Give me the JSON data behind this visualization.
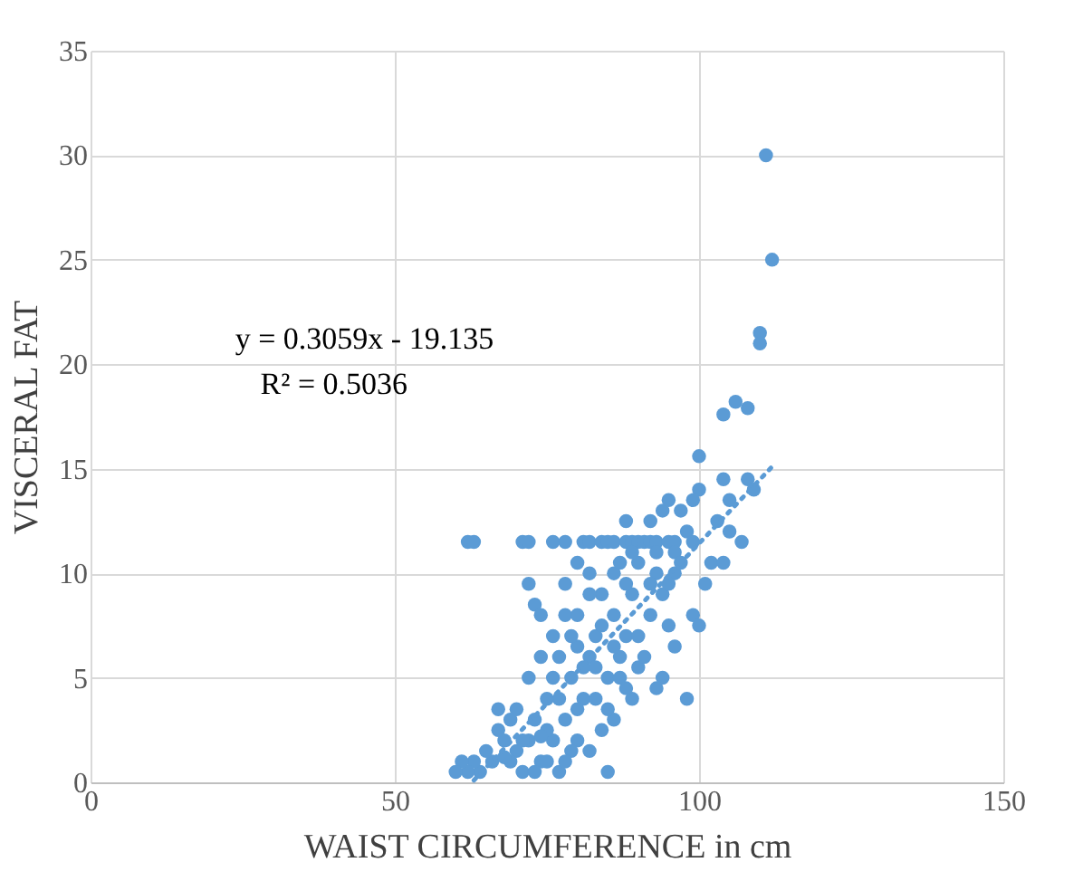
{
  "chart_data": {
    "type": "scatter",
    "xlabel": "WAIST CIRCUMFERENCE in cm",
    "ylabel": "VISCERAL FAT",
    "xlim": [
      0,
      150
    ],
    "ylim": [
      0,
      35
    ],
    "xticks": [
      0,
      50,
      100,
      150
    ],
    "yticks": [
      0,
      5,
      10,
      15,
      20,
      25,
      30,
      35
    ],
    "grid": true,
    "marker": "circle",
    "annotations": [
      "y = 0.3059x - 19.135",
      "R² = 0.5036"
    ],
    "series": [
      {
        "color": "#5b9bd5",
        "x": [
          111,
          112,
          110,
          110,
          106,
          108,
          104,
          100,
          62,
          63,
          71,
          72,
          76,
          78,
          81,
          82,
          84,
          85,
          86,
          88,
          89,
          90,
          91,
          92,
          93,
          95,
          96,
          107,
          100,
          104,
          105,
          108,
          109,
          97,
          99,
          94,
          92,
          95,
          88,
          102,
          104,
          96,
          98,
          93,
          90,
          86,
          80,
          82,
          78,
          72,
          73,
          74,
          101,
          99,
          100,
          98,
          96,
          95,
          94,
          93,
          89,
          88,
          87,
          86,
          85,
          84,
          83,
          82,
          81,
          80,
          79,
          78,
          77,
          76,
          75,
          74,
          73,
          72,
          71,
          70,
          69,
          68,
          67,
          66,
          65,
          64,
          63,
          62,
          61,
          60,
          70,
          72,
          74,
          76,
          78,
          80,
          82,
          84,
          86,
          88,
          90,
          92,
          94,
          96,
          93,
          89,
          86,
          84,
          83,
          80,
          79,
          77,
          75,
          73,
          71,
          69,
          67,
          82,
          85,
          81,
          79,
          83,
          87,
          90,
          91,
          88,
          85,
          77,
          75,
          78,
          74,
          68,
          76,
          80,
          89,
          87,
          92,
          95,
          97,
          99,
          105,
          103
        ],
        "values": [
          30,
          25,
          21.5,
          21,
          18.2,
          17.9,
          17.6,
          15.6,
          11.5,
          11.5,
          11.5,
          11.5,
          11.5,
          11.5,
          11.5,
          11.5,
          11.5,
          11.5,
          11.5,
          11.5,
          11.5,
          11.5,
          11.5,
          11.5,
          11.5,
          11.5,
          11.5,
          11.5,
          14,
          14.5,
          13.5,
          14.5,
          14,
          13,
          13.5,
          13,
          12.5,
          13.5,
          12.5,
          10.5,
          10.5,
          11,
          12,
          11,
          10.5,
          10,
          10.5,
          10,
          9.5,
          9.5,
          8.5,
          8,
          9.5,
          8,
          7.5,
          4,
          6.5,
          7.5,
          9,
          10,
          9,
          7,
          6,
          8,
          5,
          9,
          7,
          6,
          4,
          8,
          5,
          3,
          6,
          2,
          4,
          1,
          3,
          2,
          0.5,
          1.5,
          3,
          2,
          3.5,
          1,
          1.5,
          0.5,
          1,
          0.5,
          1,
          0.5,
          3.5,
          5,
          6,
          7,
          8,
          6.5,
          9,
          7.5,
          6.5,
          9.5,
          7,
          8,
          5,
          10,
          4.5,
          4,
          3,
          2.5,
          4,
          2,
          1.5,
          0.5,
          1,
          0.5,
          2,
          1,
          2.5,
          1.5,
          0.5,
          5.5,
          7,
          5.5,
          5,
          5.5,
          6,
          4.5,
          3.5,
          4,
          2.5,
          1,
          2.2,
          1.2,
          5,
          3.5,
          11,
          10.5,
          9.5,
          9.5,
          10.5,
          11.5,
          12,
          12.5
        ]
      },
      {
        "type": "line",
        "marker": "none",
        "color": "#5b9bd5",
        "line_style": "dotted",
        "x": [
          63,
          112
        ],
        "values": [
          0.1,
          15.1
        ]
      }
    ]
  }
}
